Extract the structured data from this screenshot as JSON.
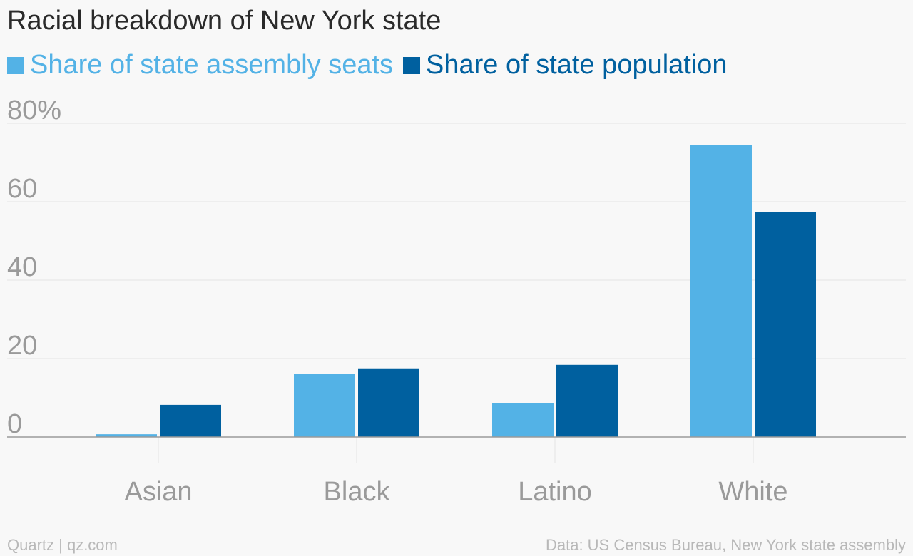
{
  "chart_data": {
    "type": "bar",
    "title": "Racial breakdown of New York state",
    "categories": [
      "Asian",
      "Black",
      "Latino",
      "White"
    ],
    "series": [
      {
        "name": "Share of state assembly seats",
        "color": "#53b2e6",
        "values": [
          0.7,
          16.0,
          8.7,
          74.5
        ]
      },
      {
        "name": "Share of state population",
        "color": "#00609f",
        "values": [
          8.2,
          17.5,
          18.4,
          57.3
        ]
      }
    ],
    "ylim": [
      0,
      80
    ],
    "yticks": [
      0,
      20,
      40,
      60,
      80
    ],
    "ytick_labels": [
      "0",
      "20",
      "40",
      "60",
      "80%"
    ],
    "grid": true,
    "legend_position": "top-left"
  },
  "footer": {
    "source_left": "Quartz | qz.com",
    "source_right": "Data: US Census Bureau, New York state assembly"
  }
}
